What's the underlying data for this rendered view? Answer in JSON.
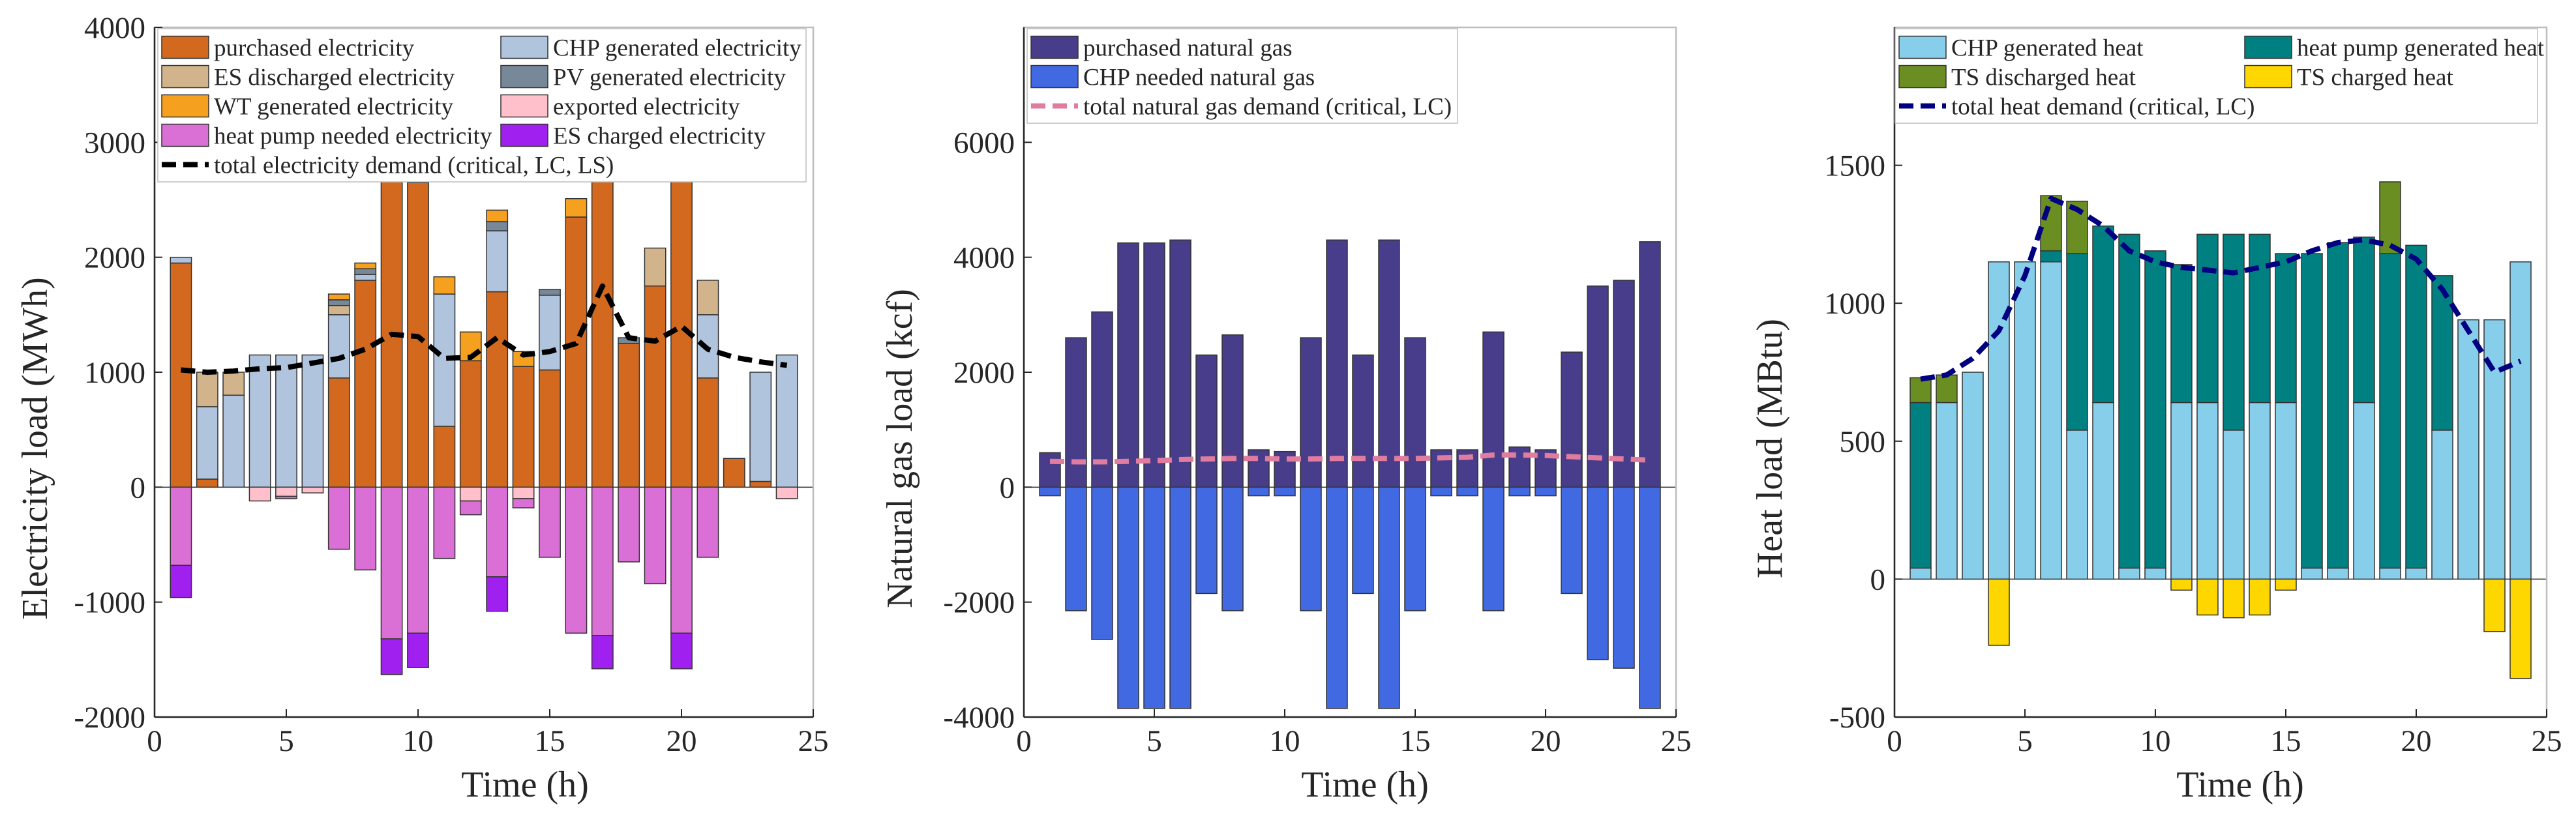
{
  "chart_data": [
    {
      "type": "bar",
      "stacked": true,
      "title": "",
      "xlabel": "Time (h)",
      "ylabel": "Electricity load (MWh)",
      "xlim": [
        0,
        25
      ],
      "ylim": [
        -2000,
        4000
      ],
      "xticks": [
        0,
        5,
        10,
        15,
        20,
        25
      ],
      "yticks": [
        -2000,
        -1000,
        0,
        1000,
        2000,
        3000,
        4000
      ],
      "x": [
        1,
        2,
        3,
        4,
        5,
        6,
        7,
        8,
        9,
        10,
        11,
        12,
        13,
        14,
        15,
        16,
        17,
        18,
        19,
        20,
        21,
        22,
        23,
        24
      ],
      "legend_position": "top-left",
      "legend_columns": 2,
      "series": [
        {
          "name": "purchased electricity",
          "color": "#D2691E",
          "values": [
            1950,
            70,
            0,
            0,
            0,
            0,
            950,
            1800,
            2800,
            2650,
            530,
            1100,
            1700,
            1050,
            1020,
            2350,
            3250,
            1250,
            1750,
            2900,
            950,
            250,
            50,
            0
          ]
        },
        {
          "name": "CHP generated electricity",
          "color": "#B0C4DE",
          "values": [
            50,
            630,
            800,
            1150,
            1150,
            1150,
            550,
            50,
            0,
            0,
            1150,
            0,
            530,
            0,
            650,
            0,
            0,
            0,
            0,
            0,
            550,
            0,
            950,
            1150
          ]
        },
        {
          "name": "ES discharged electricity",
          "color": "#D2B48C",
          "values": [
            0,
            300,
            200,
            0,
            0,
            0,
            80,
            0,
            0,
            0,
            0,
            0,
            0,
            0,
            0,
            0,
            0,
            0,
            330,
            0,
            300,
            0,
            0,
            0
          ]
        },
        {
          "name": "PV generated electricity",
          "color": "#778899",
          "values": [
            0,
            0,
            0,
            0,
            0,
            0,
            50,
            50,
            80,
            100,
            0,
            0,
            80,
            0,
            50,
            0,
            50,
            50,
            0,
            50,
            0,
            0,
            0,
            0
          ]
        },
        {
          "name": "WT generated electricity",
          "color": "#F5A01E",
          "values": [
            0,
            0,
            0,
            0,
            0,
            0,
            50,
            50,
            70,
            110,
            150,
            250,
            100,
            130,
            0,
            160,
            60,
            0,
            0,
            0,
            0,
            0,
            0,
            0
          ]
        },
        {
          "name": "exported electricity",
          "color": "#FFC0CB",
          "values": [
            0,
            0,
            0,
            -120,
            -80,
            -50,
            0,
            0,
            0,
            0,
            0,
            -120,
            0,
            -100,
            0,
            0,
            0,
            0,
            0,
            0,
            0,
            0,
            0,
            -100
          ]
        },
        {
          "name": "heat pump needed electricity",
          "color": "#DA70D6",
          "values": [
            -680,
            0,
            0,
            0,
            -20,
            0,
            -540,
            -720,
            -1320,
            -1270,
            -620,
            -120,
            -780,
            -80,
            -610,
            -1270,
            -1290,
            -650,
            -840,
            -1270,
            -610,
            0,
            0,
            0
          ]
        },
        {
          "name": "ES charged electricity",
          "color": "#A020F0",
          "values": [
            -280,
            0,
            0,
            0,
            0,
            0,
            0,
            0,
            -310,
            -300,
            0,
            0,
            -300,
            0,
            0,
            0,
            -290,
            0,
            0,
            -310,
            0,
            0,
            0,
            0
          ]
        }
      ],
      "lines": [
        {
          "name": "total electricity demand (critical, LC, LS)",
          "color": "#000000",
          "dash": "dashed",
          "x": [
            1,
            2,
            3,
            4,
            5,
            6,
            7,
            8,
            9,
            10,
            11,
            12,
            13,
            14,
            15,
            16,
            17,
            18,
            19,
            20,
            21,
            22,
            23,
            24
          ],
          "values": [
            1020,
            1000,
            1010,
            1030,
            1040,
            1080,
            1120,
            1200,
            1330,
            1310,
            1120,
            1130,
            1300,
            1150,
            1180,
            1250,
            1750,
            1300,
            1270,
            1400,
            1200,
            1130,
            1090,
            1060
          ]
        }
      ]
    },
    {
      "type": "bar",
      "stacked": true,
      "title": "",
      "xlabel": "Time (h)",
      "ylabel": "Natural gas load (kcf)",
      "xlim": [
        0,
        25
      ],
      "ylim": [
        -4000,
        8000
      ],
      "xticks": [
        0,
        5,
        10,
        15,
        20,
        25
      ],
      "yticks": [
        -4000,
        -2000,
        0,
        2000,
        4000,
        6000
      ],
      "x": [
        1,
        2,
        3,
        4,
        5,
        6,
        7,
        8,
        9,
        10,
        11,
        12,
        13,
        14,
        15,
        16,
        17,
        18,
        19,
        20,
        21,
        22,
        23,
        24
      ],
      "legend_position": "top-left",
      "legend_columns": 1,
      "series": [
        {
          "name": "purchased natural gas",
          "color": "#483D8B",
          "values": [
            600,
            2600,
            3050,
            4250,
            4250,
            4300,
            2300,
            2650,
            650,
            620,
            2600,
            4300,
            2300,
            4300,
            2600,
            650,
            650,
            2700,
            700,
            650,
            2350,
            3500,
            3600,
            4270
          ]
        },
        {
          "name": "CHP needed natural gas",
          "color": "#4169E1",
          "values": [
            -150,
            -2150,
            -2650,
            -3850,
            -3850,
            -3850,
            -1850,
            -2150,
            -150,
            -150,
            -2150,
            -3850,
            -1850,
            -3850,
            -2150,
            -150,
            -150,
            -2150,
            -150,
            -150,
            -1850,
            -3000,
            -3150,
            -3850
          ]
        }
      ],
      "lines": [
        {
          "name": "total natural gas demand (critical, LC)",
          "color": "#E07CA0",
          "dash": "dashed",
          "x": [
            1,
            2,
            3,
            4,
            5,
            6,
            7,
            8,
            9,
            10,
            11,
            12,
            13,
            14,
            15,
            16,
            17,
            18,
            19,
            20,
            21,
            22,
            23,
            24
          ],
          "values": [
            450,
            440,
            440,
            450,
            460,
            480,
            490,
            500,
            500,
            490,
            490,
            500,
            500,
            500,
            500,
            510,
            520,
            560,
            560,
            550,
            530,
            510,
            490,
            470
          ]
        }
      ]
    },
    {
      "type": "bar",
      "stacked": true,
      "title": "",
      "xlabel": "Time (h)",
      "ylabel": "Heat load (MBtu)",
      "xlim": [
        0,
        25
      ],
      "ylim": [
        -500,
        2000
      ],
      "xticks": [
        0,
        5,
        10,
        15,
        20,
        25
      ],
      "yticks": [
        -500,
        0,
        500,
        1000,
        1500
      ],
      "x": [
        1,
        2,
        3,
        4,
        5,
        6,
        7,
        8,
        9,
        10,
        11,
        12,
        13,
        14,
        15,
        16,
        17,
        18,
        19,
        20,
        21,
        22,
        23,
        24
      ],
      "legend_position": "top",
      "legend_columns": 2,
      "series": [
        {
          "name": "CHP generated heat",
          "color": "#87CEEB",
          "values": [
            40,
            640,
            750,
            1150,
            1150,
            1150,
            540,
            640,
            40,
            40,
            640,
            640,
            540,
            640,
            640,
            40,
            40,
            640,
            40,
            40,
            540,
            940,
            940,
            1150
          ]
        },
        {
          "name": "heat pump generated heat",
          "color": "#008080",
          "values": [
            600,
            0,
            0,
            0,
            0,
            40,
            640,
            640,
            1210,
            1150,
            500,
            610,
            710,
            610,
            540,
            1140,
            1180,
            600,
            1140,
            1170,
            560,
            0,
            0,
            0
          ]
        },
        {
          "name": "TS discharged heat",
          "color": "#6B8E23",
          "values": [
            90,
            100,
            0,
            0,
            0,
            200,
            190,
            0,
            0,
            0,
            0,
            0,
            0,
            0,
            0,
            0,
            0,
            0,
            260,
            0,
            0,
            0,
            0,
            0
          ]
        },
        {
          "name": "TS charged heat",
          "color": "#FFD700",
          "values": [
            0,
            0,
            0,
            -240,
            0,
            0,
            0,
            0,
            0,
            0,
            -40,
            -130,
            -140,
            -130,
            -40,
            0,
            0,
            0,
            0,
            0,
            0,
            0,
            -190,
            -360
          ]
        }
      ],
      "lines": [
        {
          "name": "total heat demand (critical, LC)",
          "color": "#000080",
          "dash": "dashed",
          "x": [
            1,
            2,
            3,
            4,
            5,
            6,
            7,
            8,
            9,
            10,
            11,
            12,
            13,
            14,
            15,
            16,
            17,
            18,
            19,
            20,
            21,
            22,
            23,
            24
          ],
          "values": [
            725,
            740,
            800,
            900,
            1100,
            1380,
            1340,
            1280,
            1190,
            1150,
            1130,
            1120,
            1110,
            1130,
            1150,
            1190,
            1220,
            1230,
            1210,
            1160,
            1050,
            900,
            750,
            790
          ]
        }
      ]
    }
  ]
}
